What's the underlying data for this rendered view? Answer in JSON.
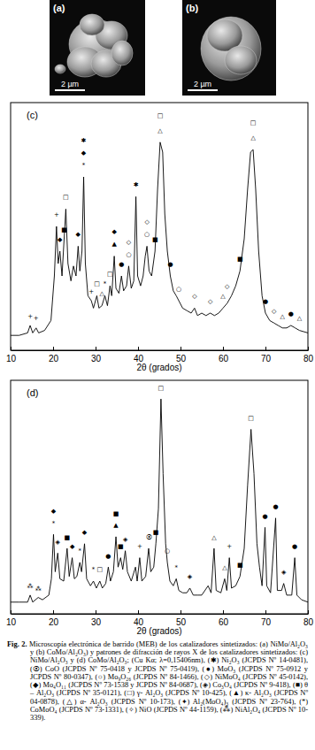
{
  "images": [
    {
      "label": "(a)",
      "scale_bar": "2 µm"
    },
    {
      "label": "(b)",
      "scale_bar": "2 µm"
    }
  ],
  "chart_data": [
    {
      "type": "line",
      "title": "(c)",
      "x_label": "2θ (grados)",
      "color": "#000000",
      "xlim": [
        10,
        80
      ],
      "xticks": [
        10,
        20,
        30,
        40,
        50,
        60,
        70,
        80
      ],
      "ylim": [
        0,
        100
      ],
      "tick_labels": "x",
      "grid": false,
      "x": [
        10,
        12,
        14,
        14.6,
        15.2,
        16,
        16.6,
        18,
        19.5,
        20.3,
        20.8,
        21.2,
        21.6,
        22.1,
        22.6,
        23.0,
        23.5,
        24.2,
        24.8,
        25.4,
        25.9,
        26.3,
        26.8,
        27.2,
        27.6,
        28.2,
        29.0,
        29.5,
        30.3,
        30.8,
        31.5,
        32.2,
        32.8,
        33.4,
        33.8,
        34.4,
        34.8,
        35.5,
        36.1,
        36.6,
        37.3,
        37.8,
        38.4,
        39.0,
        39.5,
        39.9,
        40.6,
        41.2,
        41.7,
        42.1,
        42.6,
        43.2,
        44.0,
        44.6,
        45.2,
        45.8,
        46.3,
        46.9,
        47.6,
        48.3,
        49.0,
        49.6,
        50.5,
        51.5,
        52.5,
        53.3,
        54.0,
        55.0,
        56.0,
        57.0,
        58.0,
        59.0,
        60.0,
        61.0,
        62.0,
        63.0,
        64.0,
        65.0,
        65.8,
        66.5,
        67.1,
        67.7,
        68.4,
        69.2,
        70.0,
        71.0,
        72.0,
        73.0,
        74.0,
        75.0,
        76.0,
        77.0,
        78.0,
        80.0
      ],
      "values": [
        6,
        6,
        7,
        10,
        7,
        9,
        7,
        8,
        12,
        30,
        50,
        35,
        40,
        30,
        45,
        57,
        35,
        28,
        34,
        30,
        42,
        32,
        40,
        70,
        35,
        22,
        20,
        17,
        22,
        17,
        18,
        22,
        18,
        26,
        22,
        38,
        25,
        23,
        30,
        24,
        26,
        34,
        25,
        28,
        62,
        30,
        26,
        30,
        38,
        42,
        32,
        30,
        40,
        65,
        84,
        80,
        55,
        40,
        30,
        24,
        22,
        20,
        17,
        16,
        15,
        17,
        14,
        15,
        14,
        15,
        14,
        15,
        17,
        19,
        22,
        26,
        32,
        45,
        65,
        80,
        81,
        65,
        40,
        22,
        15,
        12,
        11,
        10,
        9,
        9,
        10,
        9,
        8,
        7
      ],
      "annotations": [
        {
          "x": 14.6,
          "y": 13,
          "text": "+"
        },
        {
          "x": 16.0,
          "y": 12,
          "text": "+"
        },
        {
          "x": 20.8,
          "y": 54,
          "text": "+"
        },
        {
          "x": 21.6,
          "y": 44,
          "text": "◆"
        },
        {
          "x": 22.6,
          "y": 48,
          "text": "■"
        },
        {
          "x": 23.0,
          "y": 61,
          "text": "□"
        },
        {
          "x": 25.9,
          "y": 46,
          "text": "◆"
        },
        {
          "x": 27.2,
          "y": 74,
          "text": "*"
        },
        {
          "x": 27.2,
          "y": 79,
          "text": "◆"
        },
        {
          "x": 27.2,
          "y": 84,
          "text": "✱"
        },
        {
          "x": 29.0,
          "y": 23,
          "text": "+"
        },
        {
          "x": 30.3,
          "y": 26,
          "text": "□"
        },
        {
          "x": 31.5,
          "y": 22,
          "text": "△"
        },
        {
          "x": 32.2,
          "y": 26,
          "text": "*"
        },
        {
          "x": 33.4,
          "y": 30,
          "text": "□"
        },
        {
          "x": 34.4,
          "y": 42,
          "text": "▲"
        },
        {
          "x": 34.4,
          "y": 47,
          "text": "◆"
        },
        {
          "x": 36.1,
          "y": 34,
          "text": "●"
        },
        {
          "x": 37.8,
          "y": 38,
          "text": "○"
        },
        {
          "x": 37.8,
          "y": 43,
          "text": "◇"
        },
        {
          "x": 39.5,
          "y": 66,
          "text": "✱"
        },
        {
          "x": 42.1,
          "y": 46,
          "text": "○"
        },
        {
          "x": 42.1,
          "y": 51,
          "text": "◇"
        },
        {
          "x": 44.0,
          "y": 44,
          "text": "■"
        },
        {
          "x": 45.2,
          "y": 88,
          "text": "△"
        },
        {
          "x": 45.2,
          "y": 94,
          "text": "□"
        },
        {
          "x": 47.6,
          "y": 34,
          "text": "●"
        },
        {
          "x": 49.6,
          "y": 24,
          "text": "○"
        },
        {
          "x": 53.3,
          "y": 21,
          "text": "◇"
        },
        {
          "x": 57.0,
          "y": 19,
          "text": "◇"
        },
        {
          "x": 60.0,
          "y": 21,
          "text": "△"
        },
        {
          "x": 61.0,
          "y": 25,
          "text": "◇"
        },
        {
          "x": 64.0,
          "y": 36,
          "text": "■"
        },
        {
          "x": 67.1,
          "y": 85,
          "text": "△"
        },
        {
          "x": 67.1,
          "y": 91,
          "text": "□"
        },
        {
          "x": 70.0,
          "y": 19,
          "text": "●"
        },
        {
          "x": 72.0,
          "y": 15,
          "text": "◇"
        },
        {
          "x": 74.0,
          "y": 13,
          "text": "△"
        },
        {
          "x": 76.0,
          "y": 14,
          "text": "●"
        },
        {
          "x": 78.0,
          "y": 12,
          "text": "△"
        }
      ]
    },
    {
      "type": "line",
      "title": "(d)",
      "x_label": "2θ (grados)",
      "color": "#000000",
      "xlim": [
        10,
        80
      ],
      "xticks": [
        10,
        20,
        30,
        40,
        50,
        60,
        70,
        80
      ],
      "ylim": [
        0,
        100
      ],
      "tick_labels": "x",
      "grid": false,
      "x": [
        10,
        12,
        14,
        14.6,
        15.2,
        16.5,
        17.5,
        19,
        19.6,
        20.1,
        20.5,
        21.1,
        21.6,
        22.5,
        23.3,
        23.8,
        24.5,
        25.0,
        25.6,
        26.3,
        26.7,
        27.4,
        27.9,
        28.8,
        29.5,
        30.2,
        31.0,
        31.6,
        32.4,
        33.0,
        33.5,
        34.2,
        34.8,
        35.3,
        35.9,
        36.4,
        37.0,
        37.5,
        38.4,
        39.4,
        39.8,
        40.4,
        40.9,
        41.8,
        42.5,
        43.0,
        43.7,
        44.2,
        44.8,
        45.4,
        45.9,
        46.5,
        46.9,
        47.5,
        48.3,
        49.0,
        49.6,
        50.5,
        51.5,
        52.2,
        53.0,
        54.0,
        55.0,
        56.5,
        57.2,
        57.9,
        58.4,
        59.5,
        60.4,
        60.9,
        61.5,
        62.0,
        63.0,
        64.0,
        65.0,
        65.8,
        66.6,
        67.3,
        68.0,
        68.6,
        69.2,
        69.9,
        70.3,
        71.2,
        72.4,
        72.8,
        73.8,
        74.3,
        75.0,
        76.2,
        76.9,
        77.4,
        78.5,
        80
      ],
      "values": [
        5,
        5,
        5,
        8,
        5,
        7,
        6,
        8,
        15,
        34,
        18,
        26,
        15,
        14,
        28,
        16,
        24,
        15,
        16,
        22,
        18,
        30,
        15,
        12,
        14,
        11,
        14,
        11,
        13,
        20,
        14,
        18,
        33,
        20,
        24,
        19,
        27,
        18,
        14,
        20,
        14,
        24,
        14,
        16,
        28,
        18,
        20,
        30,
        45,
        92,
        60,
        30,
        22,
        14,
        12,
        15,
        10,
        9,
        9,
        11,
        8,
        8,
        8,
        12,
        9,
        28,
        10,
        9,
        15,
        10,
        24,
        11,
        12,
        16,
        28,
        55,
        79,
        60,
        30,
        20,
        12,
        37,
        12,
        9,
        41,
        10,
        10,
        13,
        8,
        8,
        24,
        8,
        6,
        5
      ],
      "annotations": [
        {
          "x": 14.6,
          "y": 11,
          "text": "⁂"
        },
        {
          "x": 16.5,
          "y": 10,
          "text": "⁂"
        },
        {
          "x": 20.1,
          "y": 38,
          "text": "*"
        },
        {
          "x": 20.1,
          "y": 43,
          "text": "◆"
        },
        {
          "x": 21.1,
          "y": 30,
          "text": "◈"
        },
        {
          "x": 23.3,
          "y": 32,
          "text": "■"
        },
        {
          "x": 24.5,
          "y": 28,
          "text": "◆"
        },
        {
          "x": 26.3,
          "y": 26,
          "text": "*"
        },
        {
          "x": 27.4,
          "y": 34,
          "text": "◆"
        },
        {
          "x": 29.5,
          "y": 18,
          "text": "*"
        },
        {
          "x": 31.0,
          "y": 18,
          "text": "□"
        },
        {
          "x": 33.0,
          "y": 24,
          "text": "●"
        },
        {
          "x": 34.8,
          "y": 37,
          "text": "▲"
        },
        {
          "x": 34.8,
          "y": 42,
          "text": "■"
        },
        {
          "x": 35.9,
          "y": 28,
          "text": "■"
        },
        {
          "x": 37.0,
          "y": 31,
          "text": "◈"
        },
        {
          "x": 40.4,
          "y": 28,
          "text": "+"
        },
        {
          "x": 42.5,
          "y": 32,
          "text": "⦿"
        },
        {
          "x": 44.2,
          "y": 34,
          "text": "■"
        },
        {
          "x": 45.4,
          "y": 96,
          "text": "□"
        },
        {
          "x": 46.9,
          "y": 26,
          "text": "○"
        },
        {
          "x": 49.0,
          "y": 19,
          "text": "*"
        },
        {
          "x": 52.2,
          "y": 15,
          "text": "◈"
        },
        {
          "x": 57.9,
          "y": 32,
          "text": "△"
        },
        {
          "x": 60.4,
          "y": 19,
          "text": "△"
        },
        {
          "x": 61.5,
          "y": 28,
          "text": "+"
        },
        {
          "x": 64.0,
          "y": 20,
          "text": "■"
        },
        {
          "x": 66.6,
          "y": 83,
          "text": "□"
        },
        {
          "x": 69.9,
          "y": 41,
          "text": "●"
        },
        {
          "x": 72.4,
          "y": 45,
          "text": "●"
        },
        {
          "x": 74.3,
          "y": 17,
          "text": "◈"
        },
        {
          "x": 76.9,
          "y": 28,
          "text": "●"
        }
      ]
    }
  ],
  "caption": {
    "label": "Fig. 2.",
    "text": "Microscopía electrónica de barrido (MEB) de los catalizadores sintetizados: (a) NiMo/Al₂O₃ y (b) CoMo/Al₂O₃) y patrones de difracción de rayos X de los catalizadores sintetizados: (c) NiMo/Al₂O₃ y (d) CoMo/Al₂O₃; (Cu Kα; λ=0,15406nm), (✱) Ni₂O₃ (JCPDS Nº 14-0481), (⦿) CoO (JCPDS Nº 75-0418 y JCPDS Nº 75-0419), (●) MoO₃ (JCPDS Nº 75-0912 y JCPDS Nº 80-0347), (○) Mo₉O₂₆ (JCPDS Nº 84-1466), (◇) NiMoO₄ (JCPDS Nº 45-0142), (◆) Mo₄O₁₁ (JCPDS Nº 73-1538 y JCPDS Nº 84-0687), (◈) Co₃O₄ (JCPDS Nº 9-418), (■) θ – Al₂O₃ (JCPDS Nº 35-0121), (□) γ- Al₂O₃ (JCPDS Nº 10-425), (▲) κ- Al₂O₃ (JCPDS Nº 04-0878), (△) α- Al₂O₃ (JCPDS Nº 10-173), (✦) Al₂(MoO₄)₃ (JCPDS Nº 23-764), (*) CoMoO₄ (JCPDS Nº 73-1331), (✧) NiO (JCPDS Nº 44-1159), (⁂) NiAl₂O₄ (JCPDS Nº 10-339)."
  }
}
